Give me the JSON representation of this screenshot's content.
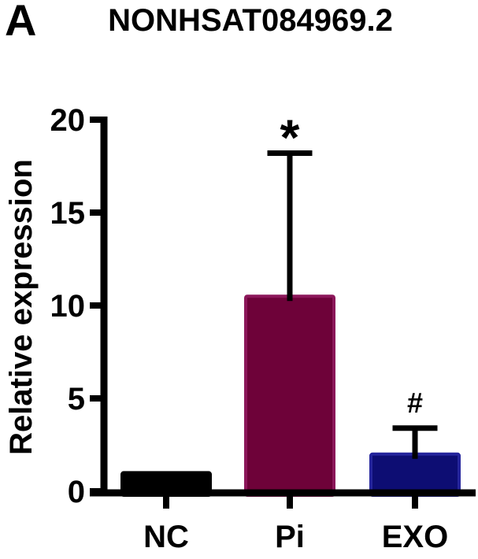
{
  "figure": {
    "background": "#ffffff"
  },
  "chart_data": {
    "type": "bar",
    "panel_label": "A",
    "title": "NONHSAT084969.2",
    "ylabel": "Relative expression",
    "xlabel": "",
    "categories": [
      "NC",
      "Pi",
      "EXO"
    ],
    "values": [
      1.0,
      10.5,
      2.0
    ],
    "error_top": [
      null,
      18.2,
      3.4
    ],
    "annotations": [
      "",
      "*",
      "#"
    ],
    "bar_fill_colors": [
      "#000000",
      "#6E0239",
      "#0D0D73"
    ],
    "bar_border_colors": [
      "#000000",
      "#8C175A",
      "#24249C"
    ],
    "axis_color": "#000000",
    "ylim": [
      0,
      20
    ],
    "yticks": [
      0,
      5,
      10,
      15,
      20
    ],
    "legend": "none",
    "grid": "off"
  }
}
